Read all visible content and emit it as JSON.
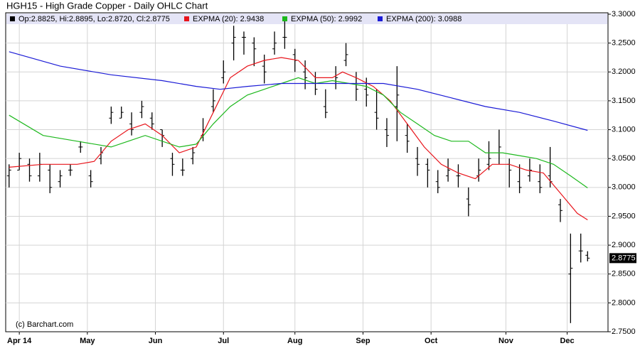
{
  "chart_data": {
    "type": "ohlc",
    "title": "HGH15 - High Grade Copper - Daily OHLC Chart",
    "credit": "(c) Barchart.com",
    "ohlc_name": "Op:2.8825, Hi:2.8895, Lo:2.8720, Cl:2.8775",
    "ohlc_color": "#000000",
    "x": [
      0,
      3,
      6,
      9,
      12,
      15,
      18,
      21,
      24,
      27,
      30,
      33,
      36,
      39,
      42,
      45,
      48,
      51,
      54,
      57,
      60,
      63,
      66,
      69,
      72,
      75,
      78,
      81,
      84,
      87,
      90,
      93,
      96,
      99,
      102,
      105,
      108,
      111,
      114,
      117,
      120,
      123,
      126,
      129,
      132,
      135,
      138,
      141,
      144,
      147,
      150,
      153,
      156,
      159,
      162,
      165,
      168,
      170
    ],
    "open": [
      3.02,
      3.03,
      3.04,
      3.02,
      3.03,
      3.01,
      3.03,
      3.07,
      3.02,
      3.05,
      3.12,
      3.12,
      3.11,
      3.13,
      3.12,
      3.1,
      3.05,
      3.03,
      3.05,
      3.09,
      3.14,
      3.19,
      3.25,
      3.26,
      3.25,
      3.21,
      3.24,
      3.26,
      3.23,
      3.2,
      3.18,
      3.14,
      3.18,
      3.22,
      3.18,
      3.17,
      3.13,
      3.1,
      3.14,
      3.09,
      3.05,
      3.04,
      3.01,
      3.02,
      3.02,
      2.98,
      3.02,
      3.04,
      3.06,
      3.04,
      3.01,
      3.02,
      3.01,
      3.02,
      2.97,
      2.85,
      2.89,
      2.8825
    ],
    "high": [
      3.04,
      3.06,
      3.05,
      3.06,
      3.04,
      3.03,
      3.04,
      3.08,
      3.03,
      3.07,
      3.14,
      3.14,
      3.13,
      3.15,
      3.13,
      3.1,
      3.06,
      3.05,
      3.07,
      3.12,
      3.17,
      3.22,
      3.28,
      3.27,
      3.26,
      3.23,
      3.27,
      3.29,
      3.24,
      3.22,
      3.2,
      3.17,
      3.21,
      3.25,
      3.2,
      3.19,
      3.17,
      3.12,
      3.21,
      3.11,
      3.07,
      3.05,
      3.03,
      3.05,
      3.04,
      3.0,
      3.05,
      3.08,
      3.1,
      3.05,
      3.04,
      3.05,
      3.04,
      3.07,
      2.98,
      2.92,
      2.92,
      2.8895
    ],
    "low": [
      3.0,
      3.03,
      3.01,
      3.01,
      2.99,
      3.0,
      3.02,
      3.06,
      3.0,
      3.04,
      3.11,
      3.12,
      3.09,
      3.12,
      3.1,
      3.07,
      3.02,
      3.02,
      3.04,
      3.08,
      3.13,
      3.18,
      3.22,
      3.23,
      3.21,
      3.18,
      3.23,
      3.24,
      3.2,
      3.17,
      3.16,
      3.12,
      3.17,
      3.21,
      3.15,
      3.14,
      3.1,
      3.07,
      3.08,
      3.06,
      3.02,
      3.0,
      2.99,
      3.01,
      3.0,
      2.95,
      3.01,
      3.03,
      3.04,
      3.0,
      2.99,
      3.01,
      2.99,
      3.0,
      2.94,
      2.765,
      2.87,
      2.872
    ],
    "close": [
      3.03,
      3.05,
      3.02,
      3.04,
      3.0,
      3.02,
      3.03,
      3.07,
      3.01,
      3.06,
      3.13,
      3.13,
      3.1,
      3.14,
      3.11,
      3.09,
      3.04,
      3.03,
      3.06,
      3.1,
      3.15,
      3.2,
      3.26,
      3.26,
      3.24,
      3.2,
      3.25,
      3.26,
      3.22,
      3.19,
      3.17,
      3.13,
      3.19,
      3.23,
      3.17,
      3.16,
      3.12,
      3.09,
      3.16,
      3.08,
      3.04,
      3.03,
      3.0,
      3.03,
      3.02,
      2.97,
      3.03,
      3.05,
      3.07,
      3.03,
      3.0,
      3.03,
      3.0,
      3.01,
      2.96,
      2.86,
      2.89,
      2.8775
    ],
    "series": [
      {
        "name": "EXPMA (20): 2.9438",
        "color": "#e8141b",
        "x": [
          0,
          10,
          20,
          25,
          30,
          35,
          40,
          45,
          50,
          55,
          60,
          65,
          70,
          75,
          80,
          85,
          90,
          95,
          98,
          102,
          107,
          112,
          117,
          122,
          127,
          132,
          137,
          142,
          147,
          152,
          157,
          162,
          167,
          170
        ],
        "values": [
          3.035,
          3.04,
          3.04,
          3.045,
          3.08,
          3.1,
          3.11,
          3.09,
          3.06,
          3.07,
          3.13,
          3.19,
          3.21,
          3.22,
          3.225,
          3.22,
          3.19,
          3.19,
          3.2,
          3.19,
          3.175,
          3.15,
          3.11,
          3.07,
          3.04,
          3.025,
          3.015,
          3.04,
          3.04,
          3.03,
          3.025,
          2.99,
          2.955,
          2.9438
        ]
      },
      {
        "name": "EXPMA (50): 2.9992",
        "color": "#1db81d",
        "x": [
          0,
          10,
          20,
          30,
          35,
          40,
          50,
          55,
          60,
          65,
          70,
          75,
          80,
          85,
          90,
          95,
          100,
          105,
          110,
          115,
          120,
          125,
          130,
          135,
          140,
          145,
          150,
          155,
          160,
          165,
          170
        ],
        "values": [
          3.125,
          3.09,
          3.08,
          3.07,
          3.08,
          3.09,
          3.07,
          3.075,
          3.11,
          3.14,
          3.16,
          3.17,
          3.18,
          3.19,
          3.18,
          3.185,
          3.18,
          3.175,
          3.16,
          3.13,
          3.11,
          3.09,
          3.08,
          3.08,
          3.06,
          3.06,
          3.055,
          3.05,
          3.04,
          3.02,
          2.9992
        ]
      },
      {
        "name": "EXPMA (200): 3.0988",
        "color": "#1b1bd6",
        "x": [
          0,
          15,
          30,
          45,
          55,
          62,
          70,
          80,
          90,
          100,
          110,
          120,
          130,
          140,
          150,
          160,
          170
        ],
        "values": [
          3.235,
          3.21,
          3.195,
          3.185,
          3.175,
          3.17,
          3.175,
          3.18,
          3.18,
          3.18,
          3.18,
          3.17,
          3.155,
          3.14,
          3.13,
          3.115,
          3.0988
        ]
      }
    ],
    "xlim": [
      -1,
      176
    ],
    "ylim": [
      2.75,
      3.3
    ],
    "xticks": [
      {
        "value": 3,
        "label": "Apr 14"
      },
      {
        "value": 23,
        "label": "May"
      },
      {
        "value": 43,
        "label": "Jun"
      },
      {
        "value": 63,
        "label": "Jul"
      },
      {
        "value": 84,
        "label": "Aug"
      },
      {
        "value": 104,
        "label": "Sep"
      },
      {
        "value": 124,
        "label": "Oct"
      },
      {
        "value": 146,
        "label": "Nov"
      },
      {
        "value": 164,
        "label": "Dec"
      }
    ],
    "yticks": [
      {
        "value": 2.75,
        "label": "2.7500"
      },
      {
        "value": 2.8,
        "label": "2.8000"
      },
      {
        "value": 2.85,
        "label": "2.8500"
      },
      {
        "value": 2.9,
        "label": "2.9000"
      },
      {
        "value": 2.95,
        "label": "2.9500"
      },
      {
        "value": 3.0,
        "label": "3.0000"
      },
      {
        "value": 3.05,
        "label": "3.0500"
      },
      {
        "value": 3.1,
        "label": "3.1000"
      },
      {
        "value": 3.15,
        "label": "3.1500"
      },
      {
        "value": 3.2,
        "label": "3.2000"
      },
      {
        "value": 3.25,
        "label": "3.2500"
      },
      {
        "value": 3.3,
        "label": "3.3000"
      }
    ],
    "grid": true
  }
}
